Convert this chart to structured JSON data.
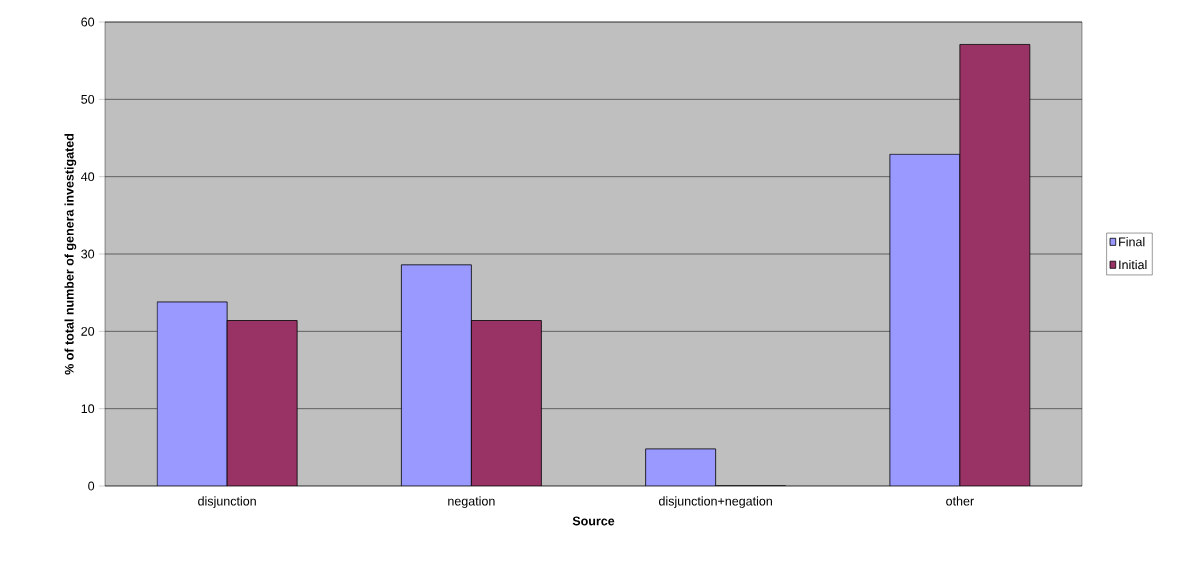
{
  "chart_data": {
    "type": "bar",
    "xlabel": "Source",
    "ylabel": "% of total number of genera investigated",
    "categories": [
      "disjunction",
      "negation",
      "disjunction+negation",
      "other"
    ],
    "series": [
      {
        "name": "Final",
        "color": "#9999ff",
        "values": [
          23.8,
          28.6,
          4.8,
          42.9
        ]
      },
      {
        "name": "Initial",
        "color": "#993366",
        "values": [
          21.4,
          21.4,
          0,
          57.1
        ]
      }
    ],
    "ylim": [
      0,
      60
    ],
    "yticks": [
      0,
      10,
      20,
      30,
      40,
      50,
      60
    ],
    "grid": "y",
    "legend": "right"
  }
}
